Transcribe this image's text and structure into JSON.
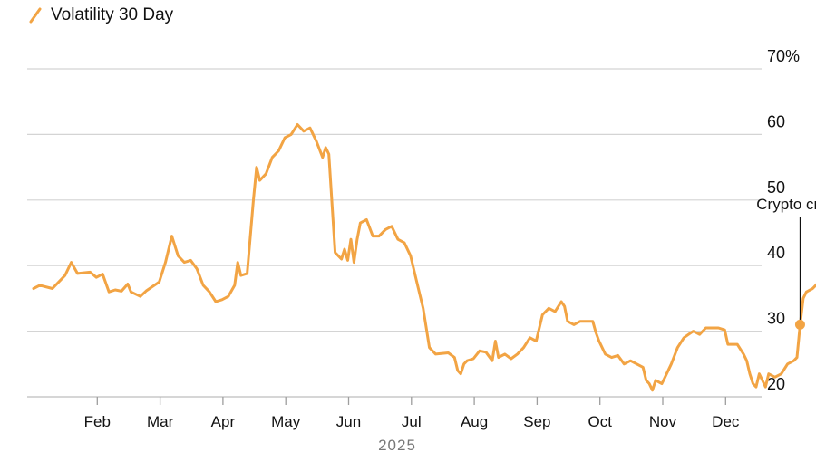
{
  "chart_data": {
    "type": "line",
    "title": "",
    "series": [
      {
        "name": "Volatility 30 Day",
        "color": "#f2a444",
        "points": [
          [
            0.0,
            36.5
          ],
          [
            0.1,
            37.0
          ],
          [
            0.3,
            36.5
          ],
          [
            0.5,
            38.5
          ],
          [
            0.6,
            40.5
          ],
          [
            0.7,
            38.8
          ],
          [
            0.9,
            39.0
          ],
          [
            1.0,
            38.2
          ],
          [
            1.1,
            38.7
          ],
          [
            1.2,
            36.0
          ],
          [
            1.3,
            36.3
          ],
          [
            1.4,
            36.1
          ],
          [
            1.5,
            37.2
          ],
          [
            1.55,
            36.0
          ],
          [
            1.7,
            35.3
          ],
          [
            1.8,
            36.2
          ],
          [
            2.0,
            37.5
          ],
          [
            2.1,
            40.5
          ],
          [
            2.2,
            44.5
          ],
          [
            2.3,
            41.5
          ],
          [
            2.4,
            40.5
          ],
          [
            2.5,
            40.8
          ],
          [
            2.6,
            39.5
          ],
          [
            2.7,
            37.0
          ],
          [
            2.8,
            36.0
          ],
          [
            2.9,
            34.5
          ],
          [
            3.0,
            34.8
          ],
          [
            3.1,
            35.3
          ],
          [
            3.2,
            37.0
          ],
          [
            3.25,
            40.5
          ],
          [
            3.3,
            38.5
          ],
          [
            3.4,
            38.8
          ],
          [
            3.5,
            50.0
          ],
          [
            3.55,
            55.0
          ],
          [
            3.6,
            53.0
          ],
          [
            3.7,
            54.0
          ],
          [
            3.8,
            56.5
          ],
          [
            3.9,
            57.5
          ],
          [
            4.0,
            59.5
          ],
          [
            4.1,
            60.0
          ],
          [
            4.2,
            61.5
          ],
          [
            4.3,
            60.5
          ],
          [
            4.4,
            61.0
          ],
          [
            4.5,
            59.0
          ],
          [
            4.6,
            56.5
          ],
          [
            4.65,
            58.0
          ],
          [
            4.7,
            57.0
          ],
          [
            4.8,
            42.0
          ],
          [
            4.9,
            41.0
          ],
          [
            4.95,
            42.5
          ],
          [
            5.0,
            40.8
          ],
          [
            5.05,
            44.0
          ],
          [
            5.1,
            40.5
          ],
          [
            5.15,
            44.0
          ],
          [
            5.2,
            46.5
          ],
          [
            5.3,
            47.0
          ],
          [
            5.4,
            44.5
          ],
          [
            5.5,
            44.5
          ],
          [
            5.6,
            45.5
          ],
          [
            5.7,
            46.0
          ],
          [
            5.8,
            44.0
          ],
          [
            5.9,
            43.5
          ],
          [
            6.0,
            41.5
          ],
          [
            6.1,
            37.5
          ],
          [
            6.2,
            33.5
          ],
          [
            6.3,
            27.5
          ],
          [
            6.4,
            26.5
          ],
          [
            6.6,
            26.7
          ],
          [
            6.7,
            26.0
          ],
          [
            6.75,
            24.0
          ],
          [
            6.8,
            23.5
          ],
          [
            6.85,
            25.0
          ],
          [
            6.9,
            25.5
          ],
          [
            7.0,
            25.8
          ],
          [
            7.1,
            27.0
          ],
          [
            7.2,
            26.8
          ],
          [
            7.3,
            25.5
          ],
          [
            7.35,
            28.5
          ],
          [
            7.4,
            26.0
          ],
          [
            7.5,
            26.5
          ],
          [
            7.6,
            25.8
          ],
          [
            7.7,
            26.5
          ],
          [
            7.8,
            27.5
          ],
          [
            7.9,
            29.0
          ],
          [
            8.0,
            28.5
          ],
          [
            8.1,
            32.5
          ],
          [
            8.2,
            33.5
          ],
          [
            8.3,
            33.0
          ],
          [
            8.4,
            34.5
          ],
          [
            8.45,
            33.8
          ],
          [
            8.5,
            31.5
          ],
          [
            8.6,
            31.0
          ],
          [
            8.7,
            31.5
          ],
          [
            8.9,
            31.5
          ],
          [
            8.95,
            29.8
          ],
          [
            9.0,
            28.5
          ],
          [
            9.1,
            26.5
          ],
          [
            9.2,
            26.0
          ],
          [
            9.3,
            26.3
          ],
          [
            9.4,
            25.0
          ],
          [
            9.5,
            25.5
          ],
          [
            9.6,
            25.0
          ],
          [
            9.7,
            24.5
          ],
          [
            9.75,
            22.5
          ],
          [
            9.8,
            22.0
          ],
          [
            9.85,
            21.0
          ],
          [
            9.9,
            22.5
          ],
          [
            10.0,
            22.0
          ],
          [
            10.05,
            23.0
          ],
          [
            10.15,
            25.0
          ],
          [
            10.25,
            27.5
          ],
          [
            10.35,
            29.0
          ],
          [
            10.5,
            30.0
          ],
          [
            10.6,
            29.5
          ],
          [
            10.7,
            30.5
          ],
          [
            10.9,
            30.5
          ],
          [
            11.0,
            30.2
          ],
          [
            11.05,
            28.0
          ],
          [
            11.2,
            28.0
          ],
          [
            11.3,
            26.5
          ],
          [
            11.35,
            25.5
          ],
          [
            11.4,
            23.5
          ],
          [
            11.45,
            22.0
          ],
          [
            11.5,
            21.5
          ],
          [
            11.55,
            23.5
          ],
          [
            11.6,
            22.5
          ],
          [
            11.65,
            21.5
          ],
          [
            11.7,
            23.5
          ],
          [
            11.8,
            23.0
          ],
          [
            11.9,
            23.5
          ],
          [
            12.0,
            25.0
          ],
          [
            12.1,
            25.5
          ],
          [
            12.15,
            26.0
          ],
          [
            12.18,
            29.0
          ],
          [
            12.2,
            31.0
          ],
          [
            12.25,
            35.0
          ],
          [
            12.3,
            36.0
          ],
          [
            12.4,
            36.5
          ],
          [
            12.5,
            37.5
          ],
          [
            12.6,
            37.0
          ],
          [
            12.7,
            38.0
          ],
          [
            12.8,
            37.0
          ],
          [
            12.9,
            36.5
          ],
          [
            13.0,
            37.0
          ],
          [
            13.1,
            36.0
          ],
          [
            13.2,
            35.5
          ],
          [
            13.3,
            36.5
          ],
          [
            13.4,
            39.0
          ],
          [
            13.5,
            40.0
          ],
          [
            13.55,
            42.0
          ],
          [
            13.6,
            38.5
          ],
          [
            13.7,
            36.0
          ],
          [
            13.8,
            37.0
          ],
          [
            13.9,
            37.5
          ],
          [
            14.0,
            37.0
          ],
          [
            14.1,
            37.5
          ],
          [
            14.2,
            36.5
          ],
          [
            14.3,
            37.5
          ],
          [
            14.4,
            38.5
          ],
          [
            14.5,
            39.5
          ],
          [
            14.6,
            40.5
          ],
          [
            14.65,
            41.5
          ],
          [
            14.7,
            43.5
          ],
          [
            14.75,
            46.0
          ],
          [
            14.8,
            42.0
          ],
          [
            14.9,
            41.5
          ],
          [
            15.0,
            40.5
          ],
          [
            15.1,
            40.0
          ],
          [
            15.2,
            38.5
          ],
          [
            15.3,
            39.0
          ],
          [
            15.4,
            39.5
          ],
          [
            15.5,
            40.5
          ]
        ]
      }
    ],
    "x_ticks": [
      {
        "label": "Feb",
        "at": 2
      },
      {
        "label": "Mar",
        "at": 3
      },
      {
        "label": "Apr",
        "at": 4
      },
      {
        "label": "May",
        "at": 5
      },
      {
        "label": "Jun",
        "at": 6
      },
      {
        "label": "Jul",
        "at": 7
      },
      {
        "label": "Aug",
        "at": 8
      },
      {
        "label": "Sep",
        "at": 9
      },
      {
        "label": "Oct",
        "at": 10
      },
      {
        "label": "Nov",
        "at": 11
      },
      {
        "label": "Dec",
        "at": 12
      }
    ],
    "x_tick_labels_months": [
      "Feb",
      "Mar",
      "Apr",
      "May",
      "Jun",
      "Jul",
      "Aug",
      "Sep",
      "Oct",
      "Nov",
      "Dec"
    ],
    "x_year_label": "2025",
    "y_ticks": [
      {
        "value": 70,
        "label": "70%"
      },
      {
        "value": 60,
        "label": "60"
      },
      {
        "value": 50,
        "label": "50"
      },
      {
        "value": 40,
        "label": "40"
      },
      {
        "value": 30,
        "label": "30"
      },
      {
        "value": 20,
        "label": "20"
      }
    ],
    "ylim": [
      20,
      70
    ],
    "grid": true,
    "annotations": [
      {
        "text": "Crypto crash",
        "x": 12.2,
        "y": 31.0
      }
    ]
  },
  "legend": {
    "label": "Volatility 30 Day",
    "color": "#f2a444"
  }
}
